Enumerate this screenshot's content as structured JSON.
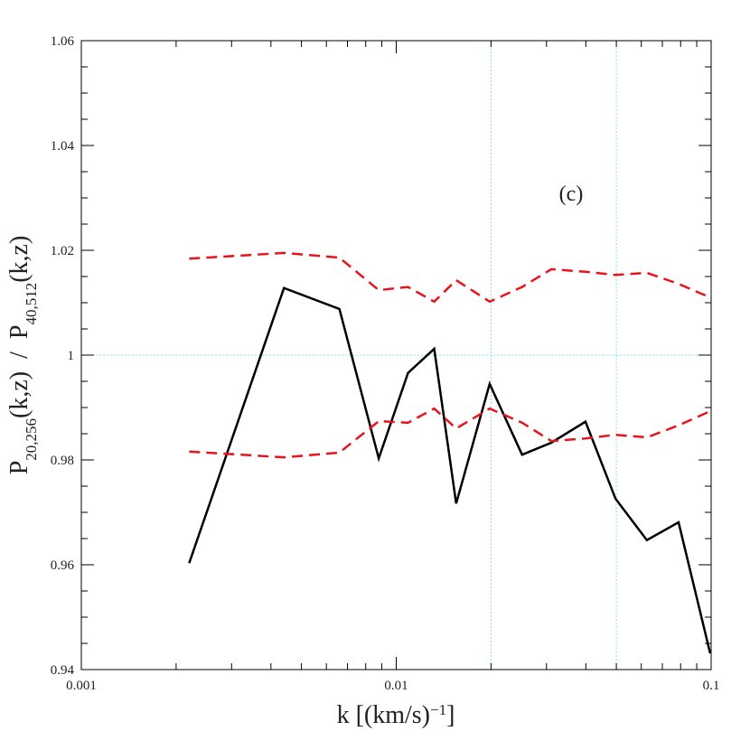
{
  "chart_data": {
    "type": "line",
    "x_label": {
      "main": "k  [(km/s)",
      "superscript": "−1",
      "end": "]"
    },
    "y_label": {
      "numerator_symbol": "P",
      "numerator_subscript": "20,256",
      "numerator_args": "(k,z)",
      "separator": "/",
      "denominator_symbol": "P",
      "denominator_subscript": "40,512",
      "denominator_args": "(k,z)"
    },
    "annotation": "(c)",
    "x": [
      0.0022,
      0.0044,
      0.0066,
      0.0088,
      0.0109,
      0.0132,
      0.0155,
      0.0198,
      0.0251,
      0.0311,
      0.0399,
      0.0497,
      0.0625,
      0.0788,
      0.0993
    ],
    "series": [
      {
        "color": "#000000",
        "dashed": false,
        "values": [
          0.9603,
          1.0128,
          1.0088,
          0.9803,
          0.9966,
          1.0012,
          0.9717,
          0.9945,
          0.981,
          0.9833,
          0.9873,
          0.9726,
          0.9647,
          0.9681,
          0.9431
        ]
      },
      {
        "color": "#e8141c",
        "dashed": true,
        "values": [
          1.0184,
          1.0195,
          1.0186,
          1.0124,
          1.013,
          1.0102,
          1.0143,
          1.0102,
          1.013,
          1.0164,
          1.0159,
          1.0153,
          1.0157,
          1.0136,
          1.011
        ]
      },
      {
        "color": "#e8141c",
        "dashed": true,
        "values": [
          0.9816,
          0.9805,
          0.9814,
          0.9874,
          0.9871,
          0.9898,
          0.986,
          0.9898,
          0.9871,
          0.9836,
          0.9841,
          0.9848,
          0.9843,
          0.9866,
          0.9893
        ]
      }
    ],
    "x_log": true,
    "xlim": [
      0.001,
      0.1
    ],
    "xticks": [
      0.001,
      0.01,
      0.1
    ],
    "xminorticks": [
      0.002,
      0.003,
      0.004,
      0.005,
      0.006,
      0.007,
      0.008,
      0.009,
      0.02,
      0.03,
      0.04,
      0.05,
      0.06,
      0.07,
      0.08,
      0.09
    ],
    "ylim": [
      0.94,
      1.06
    ],
    "yticks": [
      0.94,
      0.96,
      0.98,
      1,
      1.02,
      1.04,
      1.06
    ],
    "yminorticks": [
      0.945,
      0.95,
      0.955,
      0.965,
      0.97,
      0.975,
      0.985,
      0.99,
      0.995,
      1.005,
      1.01,
      1.015,
      1.025,
      1.03,
      1.035,
      1.045,
      1.05,
      1.055
    ],
    "reference_lines": {
      "color": "#7fe0ea",
      "x": [
        0.02,
        0.05
      ],
      "y": [
        1
      ]
    }
  }
}
